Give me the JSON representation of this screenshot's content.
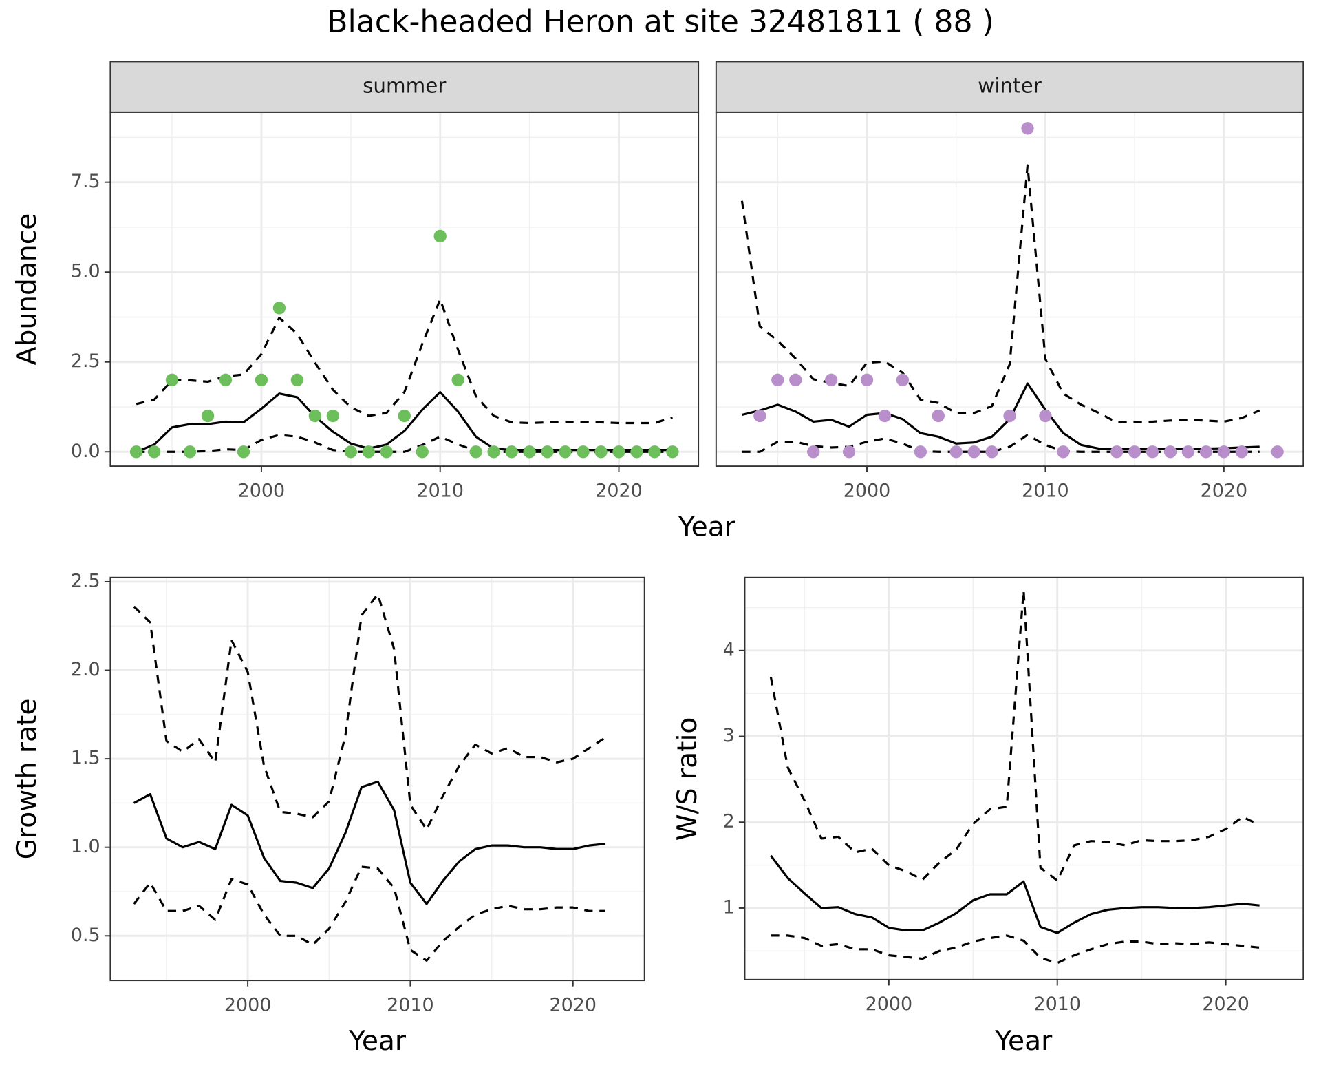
{
  "title": "Black-headed Heron at site 32481811 ( 88 )",
  "chart_data": [
    {
      "type": "line",
      "strip": "summer",
      "xlabel": "Year",
      "ylabel": "Abundance",
      "x": [
        1993,
        1994,
        1995,
        1996,
        1997,
        1998,
        1999,
        2000,
        2001,
        2002,
        2003,
        2004,
        2005,
        2006,
        2007,
        2008,
        2009,
        2010,
        2011,
        2012,
        2013,
        2014,
        2015,
        2016,
        2017,
        2018,
        2019,
        2020,
        2021,
        2022,
        2023
      ],
      "xlim": [
        1991.55,
        2024.45
      ],
      "xticks": [
        2000,
        2010,
        2020
      ],
      "ylim": [
        -0.4,
        9.45
      ],
      "yticks": [
        {
          "value": 0,
          "label": "0.0"
        },
        2.5,
        {
          "value": 5,
          "label": "5.0"
        },
        7.5
      ],
      "grid": true,
      "series": [
        {
          "style": "solid",
          "color": "#000000",
          "values": [
            0,
            0.2,
            0.68,
            0.77,
            0.77,
            0.84,
            0.82,
            1.2,
            1.62,
            1.52,
            0.98,
            0.56,
            0.23,
            0.09,
            0.2,
            0.58,
            1.17,
            1.66,
            1.12,
            0.42,
            0.09,
            0.05,
            0.05,
            0.05,
            0.05,
            0.05,
            0.05,
            0.05,
            0.05,
            0.05,
            0.05
          ]
        },
        {
          "style": "dashed",
          "color": "#000000",
          "values": [
            1.33,
            1.45,
            1.99,
            1.99,
            1.95,
            2.1,
            2.15,
            2.72,
            3.73,
            3.28,
            2.48,
            1.73,
            1.24,
            1.0,
            1.08,
            1.66,
            3.0,
            4.24,
            2.84,
            1.55,
            1.0,
            0.82,
            0.8,
            0.82,
            0.84,
            0.82,
            0.82,
            0.8,
            0.8,
            0.8,
            0.96
          ]
        },
        {
          "style": "dashed",
          "color": "#000000",
          "values": [
            0,
            0,
            0,
            0,
            0.02,
            0.07,
            0.05,
            0.33,
            0.47,
            0.42,
            0.26,
            0.05,
            0,
            0,
            0,
            0,
            0.19,
            0.42,
            0.21,
            0.02,
            0,
            0,
            0,
            0,
            0,
            0,
            0,
            0,
            0,
            0,
            0
          ]
        },
        {
          "style": "points",
          "color": "#6dbf5b",
          "values": [
            0,
            0,
            2,
            0,
            1,
            2,
            0,
            2,
            4,
            2,
            1,
            1,
            0,
            0,
            0,
            1,
            0,
            6,
            2,
            0,
            0,
            0,
            0,
            0,
            0,
            0,
            0,
            0,
            0,
            0,
            0
          ]
        }
      ]
    },
    {
      "type": "line",
      "strip": "winter",
      "x": [
        1993,
        1994,
        1995,
        1996,
        1997,
        1998,
        1999,
        2000,
        2001,
        2002,
        2003,
        2004,
        2005,
        2006,
        2007,
        2008,
        2009,
        2010,
        2011,
        2012,
        2013,
        2014,
        2015,
        2016,
        2017,
        2018,
        2019,
        2020,
        2021,
        2022,
        2023
      ],
      "xlim": [
        1991.55,
        2024.45
      ],
      "xticks": [
        2000,
        2010,
        2020
      ],
      "ylim": [
        -0.4,
        9.45
      ],
      "yticks": [
        0,
        2.5,
        5,
        7.5
      ],
      "grid": true,
      "series": [
        {
          "style": "solid",
          "color": "#000000",
          "values": [
            1.03,
            1.15,
            1.31,
            1.12,
            0.84,
            0.89,
            0.7,
            1.03,
            1.08,
            0.91,
            0.52,
            0.42,
            0.23,
            0.26,
            0.42,
            0.91,
            1.9,
            1.17,
            0.52,
            0.19,
            0.09,
            0.09,
            0.09,
            0.09,
            0.09,
            0.09,
            0.09,
            0.1,
            0.12,
            0.14,
            null
          ]
        },
        {
          "style": "dashed",
          "color": "#000000",
          "values": [
            6.98,
            3.49,
            3.09,
            2.6,
            2.02,
            1.92,
            1.83,
            2.48,
            2.51,
            2.2,
            1.45,
            1.36,
            1.08,
            1.08,
            1.27,
            2.44,
            7.97,
            2.58,
            1.62,
            1.31,
            1.08,
            0.82,
            0.82,
            0.84,
            0.87,
            0.89,
            0.87,
            0.84,
            0.94,
            1.15,
            null
          ]
        },
        {
          "style": "dashed",
          "color": "#000000",
          "values": [
            0,
            0,
            0.28,
            0.28,
            0.16,
            0.12,
            0.14,
            0.28,
            0.37,
            0.23,
            0.02,
            0,
            0,
            0,
            0,
            0.14,
            0.47,
            0.19,
            0.02,
            0,
            0,
            0,
            0,
            0,
            0,
            0,
            0,
            0,
            0,
            0,
            null
          ]
        },
        {
          "style": "points",
          "color": "#b98fcb",
          "values": [
            null,
            1,
            2,
            2,
            0,
            2,
            0,
            2,
            1,
            2,
            0,
            1,
            0,
            0,
            0,
            1,
            9,
            1,
            0,
            null,
            null,
            0,
            0,
            0,
            0,
            0,
            0,
            0,
            0,
            null,
            0
          ]
        }
      ]
    },
    {
      "type": "line",
      "xlabel": "Year",
      "ylabel": "Growth rate",
      "x": [
        1993,
        1994,
        1995,
        1996,
        1997,
        1998,
        1999,
        2000,
        2001,
        2002,
        2003,
        2004,
        2005,
        2006,
        2007,
        2008,
        2009,
        2010,
        2011,
        2012,
        2013,
        2014,
        2015,
        2016,
        2017,
        2018,
        2019,
        2020,
        2021,
        2022
      ],
      "xlim": [
        1991.55,
        2024.4
      ],
      "xticks": [
        2000,
        2010,
        2020
      ],
      "ylim": [
        0.248,
        2.524
      ],
      "yticks": [
        0.5,
        {
          "value": 1,
          "label": "1.0"
        },
        1.5,
        {
          "value": 2,
          "label": "2.0"
        },
        2.5
      ],
      "grid": true,
      "series": [
        {
          "style": "solid",
          "color": "#000000",
          "values": [
            1.25,
            1.3,
            1.05,
            1.0,
            1.03,
            0.99,
            1.24,
            1.18,
            0.94,
            0.81,
            0.8,
            0.77,
            0.88,
            1.08,
            1.34,
            1.37,
            1.21,
            0.8,
            0.68,
            0.81,
            0.92,
            0.99,
            1.01,
            1.01,
            1.0,
            1.0,
            0.99,
            0.99,
            1.01,
            1.02
          ]
        },
        {
          "style": "dashed",
          "color": "#000000",
          "values": [
            2.36,
            2.27,
            1.6,
            1.54,
            1.61,
            1.48,
            2.17,
            1.99,
            1.46,
            1.2,
            1.19,
            1.17,
            1.26,
            1.63,
            2.31,
            2.43,
            2.12,
            1.24,
            1.1,
            1.29,
            1.46,
            1.58,
            1.53,
            1.56,
            1.51,
            1.51,
            1.48,
            1.5,
            1.56,
            1.62
          ]
        },
        {
          "style": "dashed",
          "color": "#000000",
          "values": [
            0.68,
            0.8,
            0.64,
            0.64,
            0.67,
            0.59,
            0.82,
            0.79,
            0.62,
            0.5,
            0.5,
            0.45,
            0.54,
            0.69,
            0.89,
            0.88,
            0.77,
            0.42,
            0.36,
            0.47,
            0.55,
            0.62,
            0.65,
            0.67,
            0.65,
            0.65,
            0.66,
            0.66,
            0.64,
            0.64
          ]
        }
      ]
    },
    {
      "type": "line",
      "xlabel": "Year",
      "ylabel": "W/S ratio",
      "x": [
        1993,
        1994,
        1995,
        1996,
        1997,
        1998,
        1999,
        2000,
        2001,
        2002,
        2003,
        2004,
        2005,
        2006,
        2007,
        2008,
        2009,
        2010,
        2011,
        2012,
        2013,
        2014,
        2015,
        2016,
        2017,
        2018,
        2019,
        2020,
        2021,
        2022
      ],
      "xlim": [
        1991.45,
        2024.6
      ],
      "xticks": [
        2000,
        2010,
        2020
      ],
      "ylim": [
        0.167,
        4.85
      ],
      "yticks": [
        1,
        2,
        3,
        4
      ],
      "grid": true,
      "series": [
        {
          "style": "solid",
          "color": "#000000",
          "values": [
            1.61,
            1.35,
            1.17,
            1.0,
            1.01,
            0.93,
            0.89,
            0.77,
            0.74,
            0.74,
            0.83,
            0.94,
            1.09,
            1.16,
            1.16,
            1.31,
            0.78,
            0.71,
            0.83,
            0.93,
            0.98,
            1.0,
            1.01,
            1.01,
            1.0,
            1.0,
            1.01,
            1.03,
            1.05,
            1.03
          ]
        },
        {
          "style": "dashed",
          "color": "#000000",
          "values": [
            3.69,
            2.64,
            2.25,
            1.81,
            1.83,
            1.65,
            1.69,
            1.5,
            1.43,
            1.33,
            1.53,
            1.68,
            1.98,
            2.15,
            2.18,
            4.7,
            1.47,
            1.32,
            1.73,
            1.78,
            1.77,
            1.73,
            1.79,
            1.78,
            1.78,
            1.79,
            1.83,
            1.92,
            2.06,
            1.97
          ]
        },
        {
          "style": "dashed",
          "color": "#000000",
          "values": [
            0.68,
            0.68,
            0.65,
            0.56,
            0.58,
            0.52,
            0.52,
            0.45,
            0.43,
            0.41,
            0.5,
            0.54,
            0.61,
            0.65,
            0.68,
            0.62,
            0.42,
            0.36,
            0.45,
            0.52,
            0.58,
            0.61,
            0.61,
            0.58,
            0.59,
            0.58,
            0.6,
            0.58,
            0.56,
            0.54
          ]
        }
      ]
    }
  ]
}
